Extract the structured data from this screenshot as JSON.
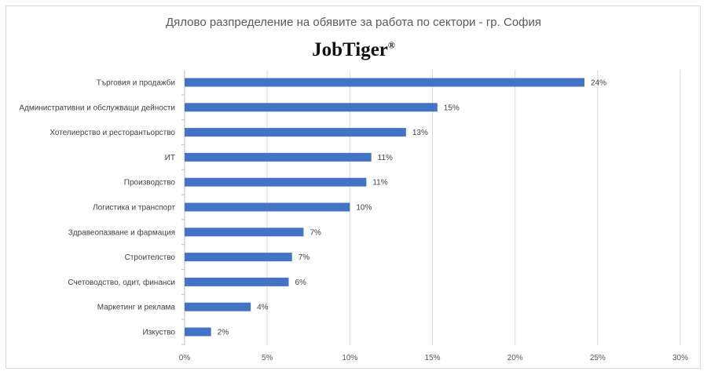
{
  "chart_data": {
    "type": "bar",
    "orientation": "horizontal",
    "title": "Дялово разпределение на обявите за работа по сектори - гр. София",
    "logo_text": "JobTiger",
    "logo_mark": "®",
    "categories": [
      "Търговия и продажби",
      "Административни и обслужващи дейности",
      "Хотелиерство и ресторантьорство",
      "ИТ",
      "Производство",
      "Логистика и транспорт",
      "Здравеопазване и фармация",
      "Строителство",
      "Счетоводство, одит, финанси",
      "Маркетинг и реклама",
      "Изкуство"
    ],
    "values": [
      24.2,
      15.3,
      13.4,
      11.3,
      11.0,
      10.0,
      7.2,
      6.5,
      6.3,
      4.0,
      1.6
    ],
    "data_labels": [
      "24%",
      "15%",
      "13%",
      "11%",
      "11%",
      "10%",
      "7%",
      "7%",
      "6%",
      "4%",
      "2%"
    ],
    "xlim": [
      0,
      30
    ],
    "xticks": [
      0,
      5,
      10,
      15,
      20,
      25,
      30
    ],
    "xtick_labels": [
      "0%",
      "5%",
      "10%",
      "15%",
      "20%",
      "25%",
      "30%"
    ],
    "xlabel": "",
    "ylabel": "",
    "grid": true,
    "legend": "none",
    "bar_color": "#4472c4"
  }
}
